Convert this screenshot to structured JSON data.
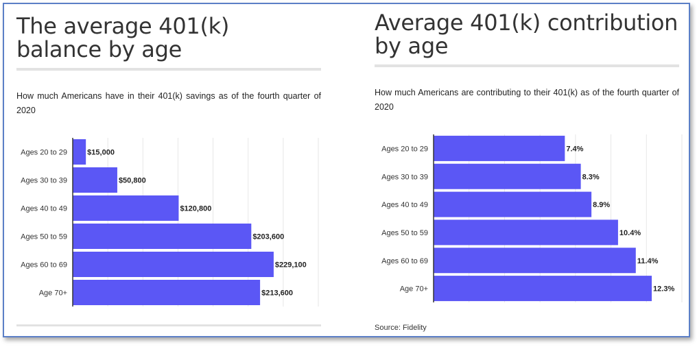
{
  "chart_data": [
    {
      "type": "bar",
      "orientation": "horizontal",
      "title": "The average 401(k) balance by age",
      "subtitle": "How much Americans have in their 401(k) savings as of the fourth quarter of 2020",
      "categories": [
        "Ages 20 to 29",
        "Ages 30 to 39",
        "Ages 40 to 49",
        "Ages 50 to 59",
        "Ages 60 to 69",
        "Age 70+"
      ],
      "values": [
        15000,
        50800,
        120800,
        203600,
        229100,
        213600
      ],
      "labels": [
        "$15,000",
        "$50,800",
        "$120,800",
        "$203,600",
        "$229,100",
        "$213,600"
      ],
      "xlim": [
        0,
        280000
      ],
      "grid": true,
      "color": "#5b57f5"
    },
    {
      "type": "bar",
      "orientation": "horizontal",
      "title": "Average 401(k) contribution by age",
      "subtitle": "How much Americans are contributing to their 401(k) as of the fourth quarter of 2020",
      "categories": [
        "Ages 20 to 29",
        "Ages 30 to 39",
        "Ages 40 to 49",
        "Ages 50 to 59",
        "Ages 60 to 69",
        "Age 70+"
      ],
      "values": [
        7.4,
        8.3,
        8.9,
        10.4,
        11.4,
        12.3
      ],
      "labels": [
        "7.4%",
        "8.3%",
        "8.9%",
        "10.4%",
        "11.4%",
        "12.3%"
      ],
      "xlim": [
        0,
        14
      ],
      "grid": true,
      "color": "#5b57f5",
      "source": "Source: Fidelity"
    }
  ]
}
